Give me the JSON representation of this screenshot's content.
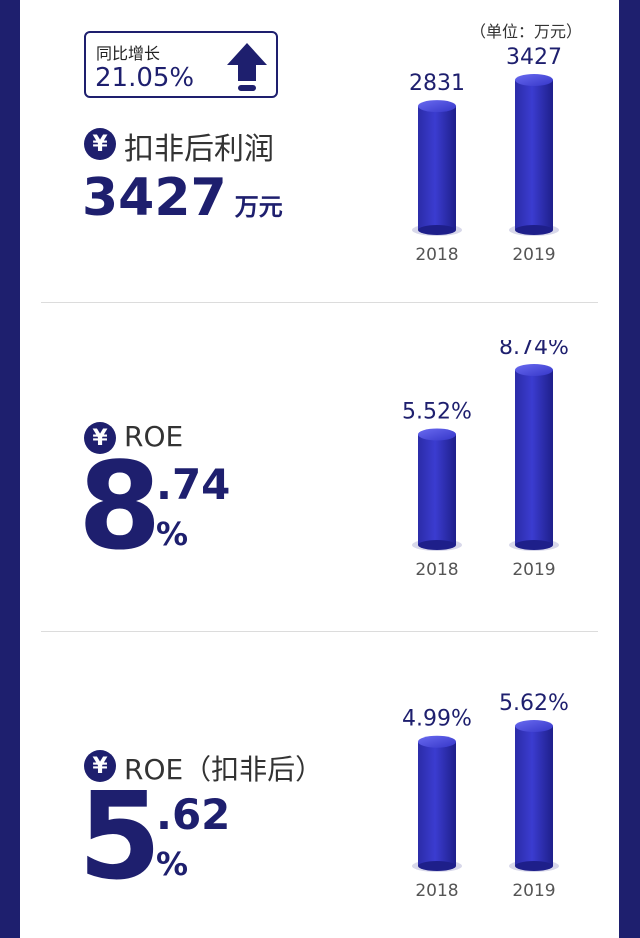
{
  "colors": {
    "navy": "#1e1f6e",
    "bar": "#2e2fb0",
    "divider": "#dcdcdc"
  },
  "section1": {
    "badge_label": "同比增长",
    "badge_value": "21.05%",
    "badge_icon": "up-arrow-icon",
    "yen_icon": "¥",
    "title": "扣非后利润",
    "value": "3427",
    "unit": "万元",
    "unit_note": "（单位：万元）"
  },
  "section2": {
    "yen_icon": "¥",
    "title": "ROE",
    "value_int": "8",
    "value_dec": ".74",
    "value_pct": "%"
  },
  "section3": {
    "yen_icon": "¥",
    "title": "ROE（扣非后）",
    "value_int": "5",
    "value_dec": ".62",
    "value_pct": "%"
  },
  "chart_data": [
    {
      "type": "bar",
      "categories": [
        "2018",
        "2019"
      ],
      "values": [
        2831,
        3427
      ],
      "labels": [
        "2831",
        "3427"
      ],
      "unit": "万元"
    },
    {
      "type": "bar",
      "categories": [
        "2018",
        "2019"
      ],
      "values": [
        5.52,
        8.74
      ],
      "labels": [
        "5.52%",
        "8.74%"
      ],
      "unit": "%"
    },
    {
      "type": "bar",
      "categories": [
        "2018",
        "2019"
      ],
      "values": [
        4.99,
        5.62
      ],
      "labels": [
        "4.99%",
        "5.62%"
      ],
      "unit": "%"
    }
  ]
}
